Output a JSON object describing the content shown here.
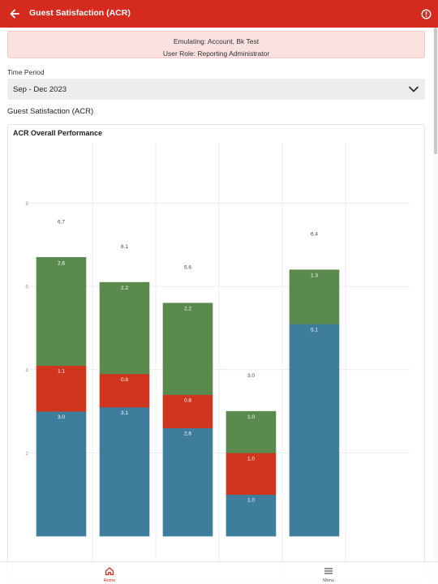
{
  "header": {
    "title": "Guest Satisfaction (ACR)",
    "back_icon": "arrow-left-icon",
    "alert_icon": "alert-circle-icon"
  },
  "banner": {
    "emulating": "Emulating: Account, Bk Test",
    "role": "User Role: Reporting Administrator"
  },
  "filter": {
    "label": "Time Period",
    "selected": "Sep - Dec 2023"
  },
  "section_title": "Guest Satisfaction (ACR)",
  "card_title": "ACR Overall Performance",
  "colors": {
    "brand": "#d52b1e",
    "banner_bg": "#f9e1e0",
    "series_blue": "#3f7d9c",
    "series_red": "#d0361d",
    "series_green": "#5a8a4d"
  },
  "chart_data": {
    "type": "bar",
    "stacked": true,
    "title": "ACR Overall Performance",
    "ylim": [
      0,
      10
    ],
    "y_ticks": [
      "2",
      "4",
      "6",
      "8",
      "10"
    ],
    "grid": true,
    "series": [
      {
        "color": "#3f7d9c",
        "values": [
          3.0,
          3.1,
          2.6,
          1.0,
          5.1
        ],
        "labels": [
          "3.0",
          "3.1",
          "2.6",
          "1.0",
          "5.1"
        ]
      },
      {
        "color": "#d0361d",
        "values": [
          1.1,
          0.8,
          0.8,
          1.0,
          null
        ],
        "labels": [
          "1.1",
          "0.8",
          "0.8",
          "1.0",
          ""
        ]
      },
      {
        "color": "#5a8a4d",
        "values": [
          2.6,
          2.2,
          2.2,
          1.0,
          1.3
        ],
        "labels": [
          "2.6",
          "2.2",
          "2.2",
          "1.0",
          "1.3"
        ]
      }
    ],
    "totals": [
      "6.7",
      "6.1",
      "5.6",
      "3.0",
      "6.4"
    ],
    "total_values": [
      6.7,
      6.1,
      5.6,
      3.0,
      6.4
    ]
  },
  "bottom_nav": {
    "items": [
      {
        "label": "Home",
        "icon": "home-icon",
        "active": true
      },
      {
        "label": "Menu",
        "icon": "hamburger-menu-icon",
        "active": false
      }
    ]
  }
}
